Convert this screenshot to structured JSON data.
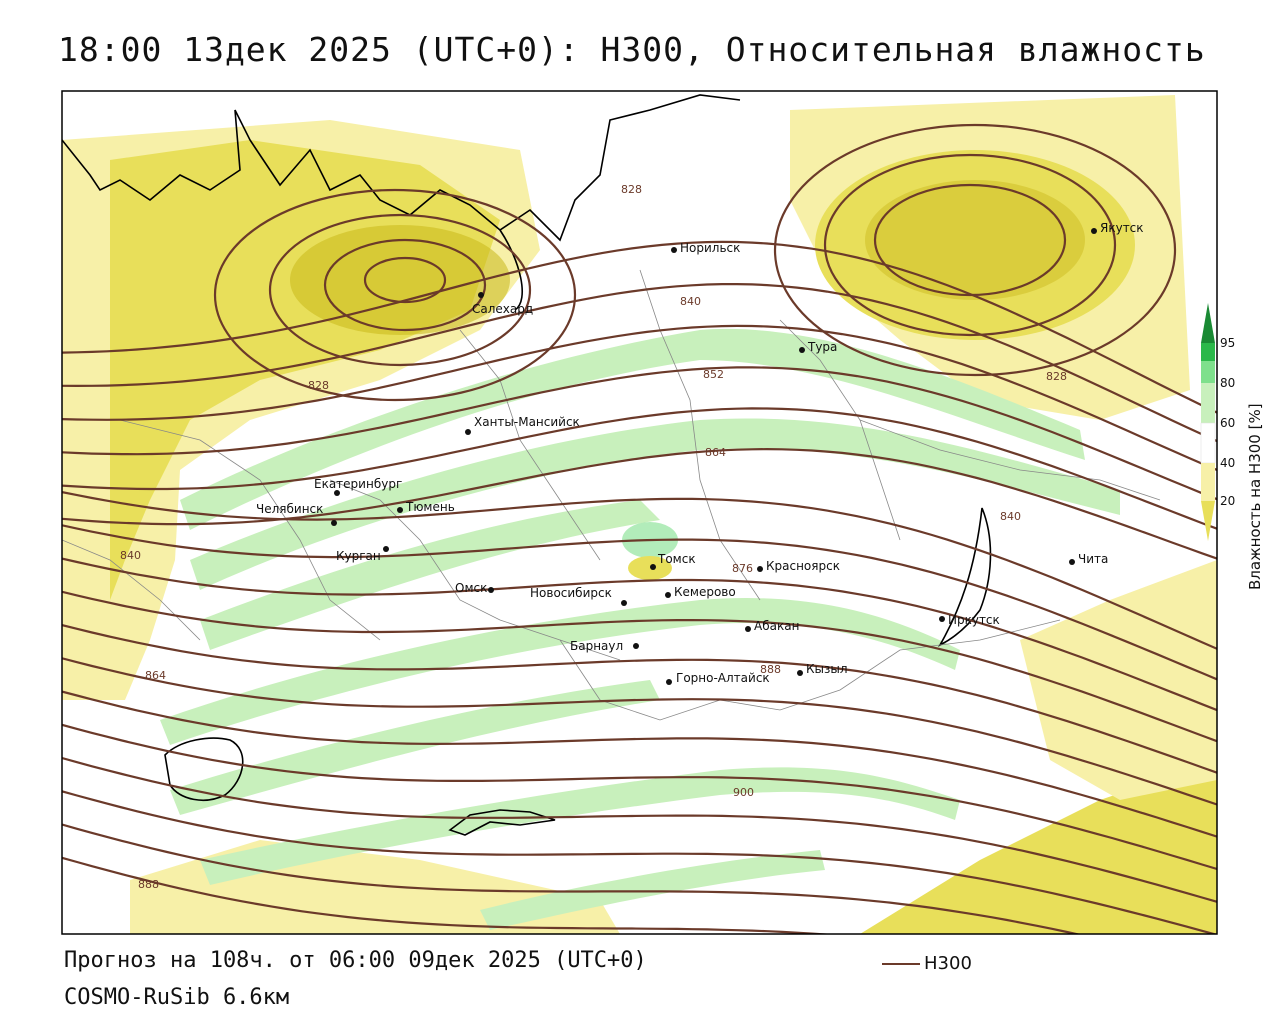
{
  "title": "18:00 13дек 2025 (UTC+0): H300, Относительная влажность",
  "footer": {
    "forecast": "Прогноз на 108ч. от 06:00 09дек 2025 (UTC+0)",
    "model": "COSMO-RuSib 6.6км",
    "legend_label": "H300"
  },
  "colorbar": {
    "title": "Влажность на H300 [%]",
    "ticks": [
      "95",
      "80",
      "60",
      "40",
      "20"
    ],
    "colors": {
      "very_dry": "#c9b81a",
      "dry": "#e8df5a",
      "semi_dry": "#f7f0a8",
      "neutral": "#ffffff",
      "moist": "#c8f0bc",
      "wet": "#7ee08c",
      "very_wet": "#2bb84a",
      "saturated": "#1a8a34"
    }
  },
  "contour_color": "#6b3a2a",
  "contour_labels": [
    "828",
    "840",
    "852",
    "864",
    "876",
    "888",
    "900",
    "828",
    "840",
    "828",
    "840",
    "864",
    "888"
  ],
  "cities": [
    {
      "name": "Якутск"
    },
    {
      "name": "Норильск"
    },
    {
      "name": "Салехард"
    },
    {
      "name": "Тура"
    },
    {
      "name": "Ханты-Мансийск"
    },
    {
      "name": "Екатеринбург"
    },
    {
      "name": "Тюмень"
    },
    {
      "name": "Челябинск"
    },
    {
      "name": "Курган"
    },
    {
      "name": "Омск"
    },
    {
      "name": "Новосибирск"
    },
    {
      "name": "Томск"
    },
    {
      "name": "Кемерово"
    },
    {
      "name": "Красноярск"
    },
    {
      "name": "Абакан"
    },
    {
      "name": "Барнаул"
    },
    {
      "name": "Горно-Алтайск"
    },
    {
      "name": "Кызыл"
    },
    {
      "name": "Иркутск"
    },
    {
      "name": "Чита"
    }
  ]
}
